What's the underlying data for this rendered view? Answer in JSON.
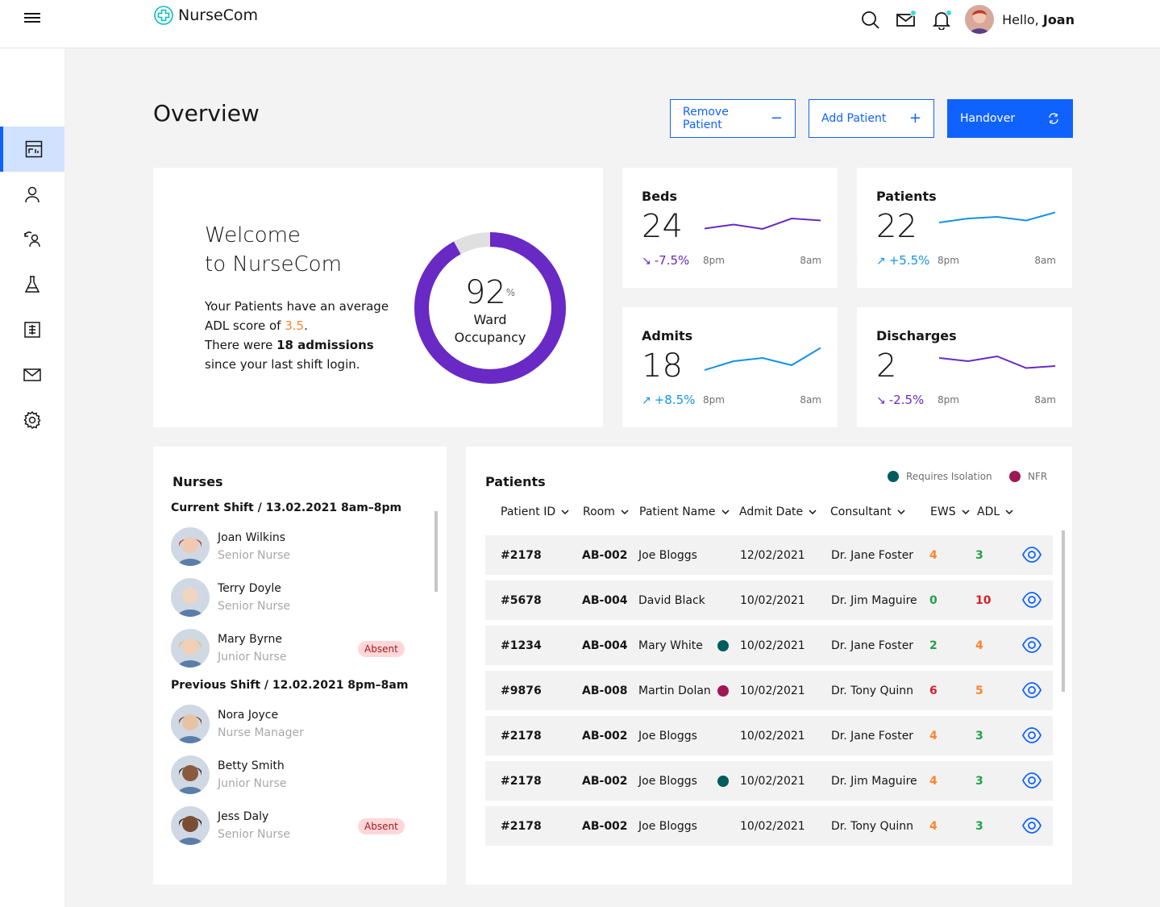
{
  "app": {
    "name": "NurseCom"
  },
  "header": {
    "greeting": "Hello,",
    "user": "Joan"
  },
  "sidebar": {
    "items": [
      {
        "name": "dashboard-icon"
      },
      {
        "name": "person-icon"
      },
      {
        "name": "users-icon"
      },
      {
        "name": "flask-icon"
      },
      {
        "name": "document-icon"
      },
      {
        "name": "mail-icon"
      },
      {
        "name": "gear-icon"
      }
    ]
  },
  "page": {
    "title": "Overview"
  },
  "actions": {
    "remove": "Remove Patient",
    "add": "Add Patient",
    "handover": "Handover"
  },
  "welcome": {
    "line1": "Welcome",
    "line2": "to NurseCom",
    "text1": "Your Patients have an average ADL score of ",
    "adl": "3.5",
    "text2": ".",
    "text3": "There were ",
    "admissions": "18 admissions",
    "text4": "since your last shift login."
  },
  "occupancy": {
    "value": "92",
    "unit": "%",
    "label1": "Ward",
    "label2": "Occupancy",
    "percent": 92
  },
  "stats": [
    {
      "title": "Beds",
      "value": "24",
      "change": "-7.5%",
      "direction": "down",
      "color": "#6929c4",
      "t0": "8pm",
      "t1": "8am",
      "spark": [
        45,
        55,
        44,
        70,
        65
      ]
    },
    {
      "title": "Patients",
      "value": "22",
      "change": "+5.5%",
      "direction": "up",
      "color": "#1192e8",
      "t0": "8pm",
      "t1": "8am",
      "spark": [
        60,
        70,
        74,
        65,
        85
      ]
    },
    {
      "title": "Admits",
      "value": "18",
      "change": "+8.5%",
      "direction": "up",
      "color": "#1192e8",
      "t0": "8pm",
      "t1": "8am",
      "spark": [
        40,
        62,
        70,
        52,
        95
      ]
    },
    {
      "title": "Discharges",
      "value": "2",
      "change": "-2.5%",
      "direction": "down",
      "color": "#6929c4",
      "t0": "8pm",
      "t1": "8am",
      "spark": [
        70,
        62,
        74,
        45,
        50
      ]
    }
  ],
  "nurses": {
    "title": "Nurses",
    "current_shift": "Current Shift / 13.02.2021 8am–8pm",
    "previous_shift": "Previous Shift / 12.02.2021 8pm–8am",
    "current": [
      {
        "name": "Joan Wilkins",
        "role": "Senior Nurse",
        "absent": ""
      },
      {
        "name": "Terry Doyle",
        "role": "Senior Nurse",
        "absent": ""
      },
      {
        "name": "Mary Byrne",
        "role": "Junior Nurse",
        "absent": "Absent"
      }
    ],
    "previous": [
      {
        "name": "Nora Joyce",
        "role": "Nurse Manager",
        "absent": ""
      },
      {
        "name": "Betty Smith",
        "role": "Junior Nurse",
        "absent": ""
      },
      {
        "name": "Jess Daly",
        "role": "Senior Nurse",
        "absent": "Absent"
      }
    ]
  },
  "patients": {
    "title": "Patients",
    "legend": {
      "isolation": "Requires Isolation",
      "nfr": "NFR",
      "isolation_color": "#005d5d",
      "nfr_color": "#9f1853"
    },
    "columns": [
      "Patient ID",
      "Room",
      "Patient Name",
      "Admit Date",
      "Consultant",
      "EWS",
      "ADL"
    ],
    "rows": [
      {
        "id": "#2178",
        "room": "AB-002",
        "name": "Joe Bloggs",
        "flag": "",
        "date": "12/02/2021",
        "consultant": "Dr. Jane Foster",
        "ews": "4",
        "adl": "3"
      },
      {
        "id": "#5678",
        "room": "AB-004",
        "name": "David Black",
        "flag": "",
        "date": "10/02/2021",
        "consultant": "Dr. Jim Maguire",
        "ews": "0",
        "adl": "10"
      },
      {
        "id": "#1234",
        "room": "AB-004",
        "name": "Mary White",
        "flag": "isolation",
        "date": "10/02/2021",
        "consultant": "Dr. Jane Foster",
        "ews": "2",
        "adl": "4"
      },
      {
        "id": "#9876",
        "room": "AB-008",
        "name": "Martin Dolan",
        "flag": "nfr",
        "date": "10/02/2021",
        "consultant": "Dr. Tony Quinn",
        "ews": "6",
        "adl": "5"
      },
      {
        "id": "#2178",
        "room": "AB-002",
        "name": "Joe Bloggs",
        "flag": "",
        "date": "10/02/2021",
        "consultant": "Dr. Jane Foster",
        "ews": "4",
        "adl": "3"
      },
      {
        "id": "#2178",
        "room": "AB-002",
        "name": "Joe Bloggs",
        "flag": "isolation",
        "date": "10/02/2021",
        "consultant": "Dr. Jim Maguire",
        "ews": "4",
        "adl": "3"
      },
      {
        "id": "#2178",
        "room": "AB-002",
        "name": "Joe Bloggs",
        "flag": "",
        "date": "10/02/2021",
        "consultant": "Dr. Tony Quinn",
        "ews": "4",
        "adl": "3"
      }
    ]
  }
}
